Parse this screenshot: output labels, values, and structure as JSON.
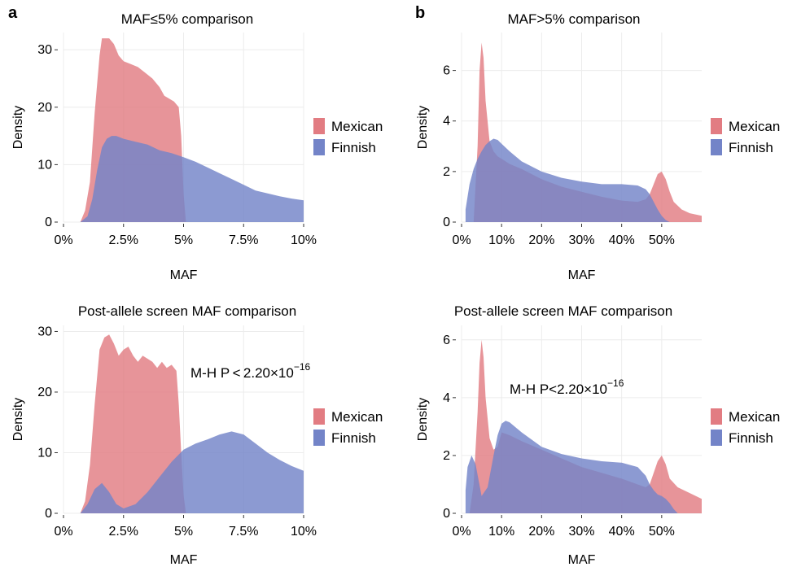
{
  "panel_labels": {
    "a": "a",
    "b": "b"
  },
  "colors": {
    "mexican": "#e27c82",
    "finnish": "#7384c8",
    "grid": "#ececec"
  },
  "chart_data": [
    {
      "type": "area",
      "title": "MAF≤5% comparison",
      "xlabel": "MAF",
      "ylabel": "Density",
      "xlim": [
        0,
        10
      ],
      "ylim": [
        0,
        33
      ],
      "x_ticks": [
        0,
        2.5,
        5,
        7.5,
        10
      ],
      "x_tick_labels": [
        "0%",
        "2.5%",
        "5%",
        "7.5%",
        "10%"
      ],
      "y_ticks": [
        0,
        10,
        20,
        30
      ],
      "y_tick_labels": [
        "0",
        "10",
        "20",
        "30"
      ],
      "grid": true,
      "legend": "right",
      "annotation": "",
      "series": [
        {
          "name": "Mexican",
          "color": "#e27c82",
          "x": [
            0.7,
            0.9,
            1.1,
            1.3,
            1.5,
            1.6,
            1.7,
            1.9,
            2.1,
            2.3,
            2.5,
            2.8,
            3.1,
            3.4,
            3.7,
            4.0,
            4.2,
            4.4,
            4.6,
            4.8,
            4.9,
            5.0,
            5.1
          ],
          "y": [
            0,
            2,
            7,
            19,
            29,
            32,
            32,
            32,
            31,
            29,
            28,
            27.5,
            27,
            26,
            25,
            23.5,
            22,
            21.5,
            21,
            20,
            15,
            5,
            0
          ]
        },
        {
          "name": "Finnish",
          "color": "#7384c8",
          "x": [
            0.7,
            1.0,
            1.2,
            1.4,
            1.6,
            1.8,
            2.0,
            2.2,
            2.5,
            3.0,
            3.5,
            4.0,
            4.5,
            5.0,
            5.5,
            6.0,
            6.5,
            7.0,
            7.5,
            8.0,
            8.5,
            9.0,
            9.5,
            10.0
          ],
          "y": [
            0,
            1,
            4,
            9,
            13,
            14.5,
            15,
            15,
            14.5,
            14,
            13.5,
            12.5,
            12,
            11.3,
            10.5,
            9.5,
            8.5,
            7.5,
            6.5,
            5.5,
            5,
            4.5,
            4.1,
            3.8
          ]
        }
      ]
    },
    {
      "type": "area",
      "title": "MAF>5% comparison",
      "xlabel": "MAF",
      "ylabel": "Density",
      "xlim": [
        0,
        60
      ],
      "ylim": [
        0,
        7.5
      ],
      "x_ticks": [
        0,
        10,
        20,
        30,
        40,
        50
      ],
      "x_tick_labels": [
        "0%",
        "10%",
        "20%",
        "30%",
        "40%",
        "50%"
      ],
      "y_ticks": [
        0,
        2,
        4,
        6
      ],
      "y_tick_labels": [
        "0",
        "2",
        "4",
        "6"
      ],
      "grid": true,
      "legend": "right",
      "annotation": "",
      "series": [
        {
          "name": "Mexican",
          "color": "#e27c82",
          "x": [
            3,
            4,
            4.5,
            5,
            5.5,
            6,
            7,
            8,
            9,
            10,
            12,
            15,
            20,
            25,
            30,
            35,
            40,
            44,
            46,
            47,
            48,
            49,
            50,
            51,
            52,
            53,
            55,
            57,
            60
          ],
          "y": [
            0,
            3,
            6,
            7.1,
            6.5,
            4.8,
            3.2,
            2.8,
            2.6,
            2.5,
            2.3,
            2.1,
            1.7,
            1.4,
            1.2,
            1.0,
            0.85,
            0.8,
            0.9,
            1.1,
            1.5,
            1.9,
            2.0,
            1.7,
            1.2,
            0.8,
            0.5,
            0.35,
            0.25
          ]
        },
        {
          "name": "Finnish",
          "color": "#7384c8",
          "x": [
            1,
            2,
            3,
            4,
            5,
            6,
            7,
            8,
            9,
            10,
            12,
            15,
            20,
            25,
            30,
            35,
            40,
            44,
            46,
            47,
            48,
            49,
            50,
            51,
            52
          ],
          "y": [
            0.5,
            1.5,
            2.1,
            2.5,
            2.8,
            3.05,
            3.2,
            3.3,
            3.25,
            3.1,
            2.8,
            2.4,
            2.0,
            1.75,
            1.6,
            1.5,
            1.5,
            1.45,
            1.3,
            1.1,
            0.8,
            0.5,
            0.25,
            0.08,
            0
          ]
        }
      ]
    },
    {
      "type": "area",
      "title": "Post-allele screen MAF comparison",
      "xlabel": "MAF",
      "ylabel": "Density",
      "xlim": [
        0,
        10
      ],
      "ylim": [
        0,
        31
      ],
      "x_ticks": [
        0,
        2.5,
        5,
        7.5,
        10
      ],
      "x_tick_labels": [
        "0%",
        "2.5%",
        "5%",
        "7.5%",
        "10%"
      ],
      "y_ticks": [
        0,
        10,
        20,
        30
      ],
      "y_tick_labels": [
        "0",
        "10",
        "20",
        "30"
      ],
      "grid": true,
      "legend": "right",
      "annotation": {
        "text": "M-H P < 2.20×10",
        "exponent": "−16"
      },
      "series": [
        {
          "name": "Mexican",
          "color": "#e27c82",
          "x": [
            0.7,
            0.9,
            1.1,
            1.3,
            1.5,
            1.7,
            1.9,
            2.1,
            2.3,
            2.5,
            2.7,
            2.9,
            3.1,
            3.3,
            3.5,
            3.7,
            3.9,
            4.1,
            4.3,
            4.5,
            4.7,
            4.8,
            4.9,
            5.0,
            5.1
          ],
          "y": [
            0,
            2,
            8,
            18,
            27,
            29,
            29.5,
            28,
            26,
            27,
            27.5,
            26,
            25,
            26,
            25.5,
            25,
            24,
            25,
            24,
            24.5,
            23.5,
            18,
            10,
            3,
            0
          ]
        },
        {
          "name": "Finnish",
          "color": "#7384c8",
          "x": [
            0.7,
            1.0,
            1.3,
            1.6,
            1.9,
            2.2,
            2.5,
            3.0,
            3.5,
            4.0,
            4.5,
            5.0,
            5.5,
            6.0,
            6.5,
            7.0,
            7.5,
            8.0,
            8.5,
            9.0,
            9.5,
            10.0
          ],
          "y": [
            0,
            1.5,
            4,
            5,
            3.5,
            1.5,
            0.8,
            1.5,
            3.5,
            6,
            8.5,
            10.5,
            11.5,
            12.2,
            13,
            13.5,
            13,
            11.5,
            10,
            8.8,
            7.8,
            7
          ]
        }
      ]
    },
    {
      "type": "area",
      "title": "Post-allele screen MAF comparison",
      "xlabel": "MAF",
      "ylabel": "Density",
      "xlim": [
        0,
        60
      ],
      "ylim": [
        0,
        6.5
      ],
      "x_ticks": [
        0,
        10,
        20,
        30,
        40,
        50
      ],
      "x_tick_labels": [
        "0%",
        "10%",
        "20%",
        "30%",
        "40%",
        "50%"
      ],
      "y_ticks": [
        0,
        2,
        4,
        6
      ],
      "y_tick_labels": [
        "0",
        "2",
        "4",
        "6"
      ],
      "grid": true,
      "legend": "right",
      "annotation": {
        "text": "M-H P<2.20×10",
        "exponent": "−16"
      },
      "series": [
        {
          "name": "Mexican",
          "color": "#e27c82",
          "x": [
            2,
            3,
            4,
            4.5,
            5,
            5.5,
            6,
            7,
            8,
            9,
            10,
            12,
            15,
            20,
            25,
            30,
            35,
            40,
            44,
            46,
            47,
            48,
            49,
            50,
            51,
            52,
            54,
            57,
            60
          ],
          "y": [
            0,
            1,
            3.5,
            5.2,
            6,
            5.4,
            4,
            2.6,
            2.2,
            2.3,
            2.8,
            2.7,
            2.5,
            2.2,
            1.9,
            1.6,
            1.4,
            1.2,
            1.0,
            0.9,
            1.0,
            1.4,
            1.8,
            2.0,
            1.7,
            1.2,
            0.9,
            0.7,
            0.5
          ]
        },
        {
          "name": "Finnish",
          "color": "#7384c8",
          "x": [
            1,
            1.5,
            2.5,
            3.5,
            5,
            6.5,
            8,
            9,
            10,
            11,
            12,
            15,
            20,
            25,
            30,
            35,
            40,
            44,
            46,
            47,
            48,
            49,
            50,
            51,
            52,
            53,
            54
          ],
          "y": [
            0.8,
            1.6,
            2.0,
            1.7,
            0.6,
            0.9,
            2.0,
            2.7,
            3.1,
            3.2,
            3.15,
            2.8,
            2.3,
            2.05,
            1.9,
            1.8,
            1.75,
            1.6,
            1.3,
            1.0,
            0.8,
            0.65,
            0.6,
            0.5,
            0.35,
            0.15,
            0
          ]
        }
      ]
    }
  ]
}
